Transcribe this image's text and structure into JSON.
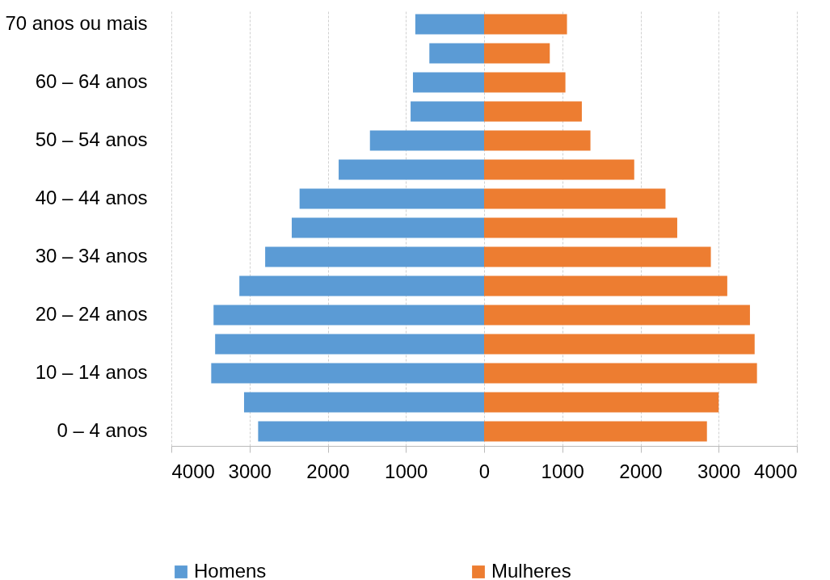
{
  "chart_data": {
    "type": "bar",
    "orientation": "horizontal",
    "stacked": true,
    "categories": [
      "70 anos ou mais",
      null,
      "60 – 64 anos",
      null,
      "50 – 54 anos",
      null,
      "40 – 44 anos",
      null,
      "30 – 34 anos",
      null,
      "20 – 24 anos",
      null,
      "10 – 14 anos",
      null,
      "0 – 4 anos"
    ],
    "series": [
      {
        "name": "Homens",
        "color": "#5b9bd5",
        "values": [
          -880,
          -700,
          -910,
          -940,
          -1460,
          -1860,
          -2360,
          -2460,
          -2800,
          -3130,
          -3460,
          -3440,
          -3490,
          -3070,
          -2890
        ]
      },
      {
        "name": "Mulheres",
        "color": "#ed7d31",
        "values": [
          1060,
          840,
          1040,
          1250,
          1360,
          1920,
          2320,
          2470,
          2900,
          3110,
          3400,
          3460,
          3490,
          3000,
          2850
        ]
      }
    ],
    "xlim": [
      -4000,
      4000
    ],
    "xticks": [
      {
        "value": -4000,
        "label": "4000"
      },
      {
        "value": -3000,
        "label": "3000"
      },
      {
        "value": -2000,
        "label": "2000"
      },
      {
        "value": -1000,
        "label": "1000"
      },
      0,
      1000,
      2000,
      3000,
      4000
    ],
    "grid": "x",
    "legend": "bottom"
  }
}
